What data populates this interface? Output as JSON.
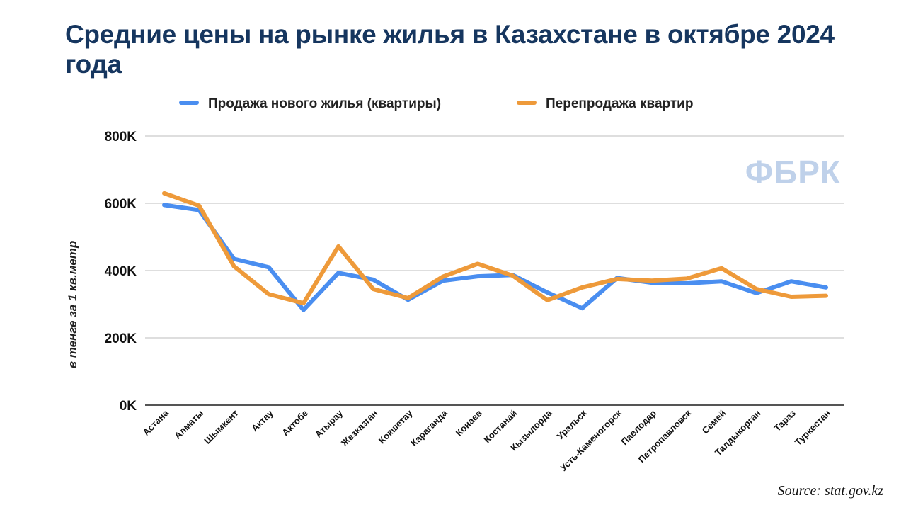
{
  "chart_data": {
    "type": "line",
    "title": "Средние цены на рынке жилья в Казахстане в октябре 2024 года",
    "ylabel": "в тенге за 1 кв.метр",
    "xlabel": "",
    "ylim": [
      0,
      800000
    ],
    "yticks": [
      0,
      200000,
      400000,
      600000,
      800000
    ],
    "ytick_labels": [
      "0K",
      "200K",
      "400K",
      "600K",
      "800K"
    ],
    "grid": true,
    "legend_position": "top-center",
    "categories": [
      "Астана",
      "Алматы",
      "Шымкент",
      "Актау",
      "Актобе",
      "Атырау",
      "Жезказган",
      "Кокшетау",
      "Караганда",
      "Конаев",
      "Костанай",
      "Кызылорда",
      "Уральск",
      "Усть-Каменогорск",
      "Павлодар",
      "Петропавловск",
      "Семей",
      "Талдыкорган",
      "Тараз",
      "Туркестан"
    ],
    "series": [
      {
        "name": "Продажа нового жилья (квартиры)",
        "color": "#4a8ef0",
        "values": [
          595000,
          580000,
          435000,
          410000,
          283000,
          393000,
          373000,
          313000,
          370000,
          383000,
          387000,
          335000,
          288000,
          378000,
          364000,
          362000,
          368000,
          333000,
          368000,
          350000
        ]
      },
      {
        "name": "Перепродажа квартир",
        "color": "#ee9a3a",
        "values": [
          630000,
          593000,
          413000,
          330000,
          303000,
          472000,
          345000,
          318000,
          382000,
          420000,
          385000,
          312000,
          350000,
          375000,
          370000,
          376000,
          407000,
          345000,
          322000,
          325000
        ]
      }
    ]
  },
  "watermark": "ФБРК",
  "source": "Source: stat.gov.kz",
  "colors": {
    "title": "#16365f",
    "grid": "#d3d3d3",
    "axis": "#555555",
    "watermark": "#bfd1ea"
  }
}
